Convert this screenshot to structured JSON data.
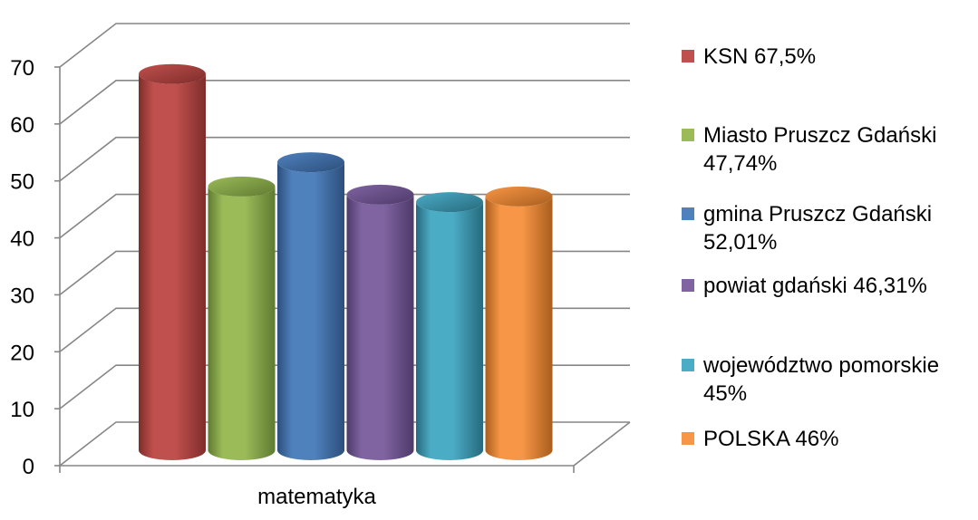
{
  "chart_data": {
    "type": "bar",
    "three_d": true,
    "bar_shape": "cylinder",
    "categories": [
      "matematyka"
    ],
    "y_ticks": [
      "0",
      "10",
      "20",
      "30",
      "40",
      "50",
      "60",
      "70"
    ],
    "ylim": [
      0,
      70
    ],
    "grid": true,
    "legend_position": "right",
    "series": [
      {
        "name": "KSN 67,5%",
        "legend_lines": [
          "KSN 67,5%"
        ],
        "values": [
          67.5
        ],
        "color": "#C0504D",
        "dark": "#7E2D2B",
        "light": "#D98B89"
      },
      {
        "name": "Miasto Pruszcz Gdański 47,74%",
        "legend_lines": [
          "Miasto Pruszcz Gdański",
          "47,74%"
        ],
        "values": [
          47.74
        ],
        "color": "#9BBB59",
        "dark": "#5F7A31",
        "light": "#C3D89A"
      },
      {
        "name": "gmina Pruszcz Gdański 52,01%",
        "legend_lines": [
          "gmina Pruszcz Gdański",
          "52,01%"
        ],
        "values": [
          52.01
        ],
        "color": "#4F81BD",
        "dark": "#2C4F7C",
        "light": "#8FB1DC"
      },
      {
        "name": "powiat gdański 46,31%",
        "legend_lines": [
          "powiat gdański 46,31%"
        ],
        "values": [
          46.31
        ],
        "color": "#8064A2",
        "dark": "#4E3A69",
        "light": "#AE98C9"
      },
      {
        "name": "województwo pomorskie 45%",
        "legend_lines": [
          "województwo pomorskie",
          "45%"
        ],
        "values": [
          45
        ],
        "color": "#4BACC6",
        "dark": "#276A7D",
        "light": "#8ACFE0"
      },
      {
        "name": "POLSKA 46%",
        "legend_lines": [
          "POLSKA 46%"
        ],
        "values": [
          46
        ],
        "color": "#F79646",
        "dark": "#A95E1E",
        "light": "#FBC08D"
      }
    ]
  }
}
